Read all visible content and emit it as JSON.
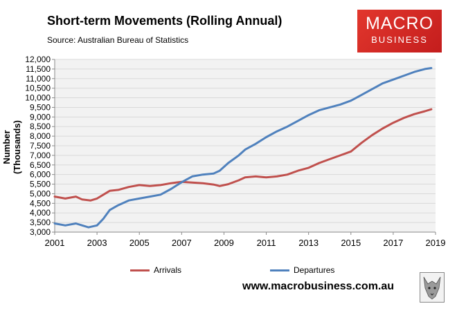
{
  "header": {
    "title": "Short-term Movements (Rolling Annual)",
    "subtitle": "Source: Australian Bureau of Statistics"
  },
  "logo": {
    "line1": "MACRO",
    "line2": "BUSINESS"
  },
  "footer": {
    "url": "www.macrobusiness.com.au"
  },
  "watermark": {
    "icon": "wolf-icon"
  },
  "colors": {
    "arrivals": "#c0504d",
    "departures": "#4f81bd",
    "plot_bg": "#f2f2f2",
    "grid": "#d9d9d9"
  },
  "chart_data": {
    "type": "line",
    "title": "Short-term Movements (Rolling Annual)",
    "xlabel": "",
    "ylabel": "Number (Thousands)",
    "xlim": [
      2001,
      2019
    ],
    "ylim": [
      3000,
      12000
    ],
    "x_ticks": [
      "2001",
      "2003",
      "2005",
      "2007",
      "2009",
      "2011",
      "2013",
      "2015",
      "2017",
      "2019"
    ],
    "y_ticks": [
      "3,000",
      "3,500",
      "4,000",
      "4,500",
      "5,000",
      "5,500",
      "6,000",
      "6,500",
      "7,000",
      "7,500",
      "8,000",
      "8,500",
      "9,000",
      "9,500",
      "10,000",
      "10,500",
      "11,000",
      "11,500",
      "12,000"
    ],
    "grid": "horizontal",
    "legend": "bottom",
    "series": [
      {
        "name": "Arrivals",
        "x": [
          2001.0,
          2001.5,
          2002.0,
          2002.3,
          2002.7,
          2003.0,
          2003.3,
          2003.6,
          2004.0,
          2004.5,
          2005.0,
          2005.5,
          2006.0,
          2006.5,
          2007.0,
          2007.5,
          2008.0,
          2008.5,
          2008.8,
          2009.2,
          2009.7,
          2010.0,
          2010.5,
          2011.0,
          2011.5,
          2012.0,
          2012.5,
          2013.0,
          2013.5,
          2014.0,
          2014.5,
          2015.0,
          2015.5,
          2016.0,
          2016.5,
          2017.0,
          2017.5,
          2018.0,
          2018.5,
          2018.8
        ],
        "values": [
          4850,
          4750,
          4850,
          4700,
          4650,
          4750,
          4950,
          5150,
          5200,
          5350,
          5450,
          5400,
          5450,
          5550,
          5620,
          5580,
          5550,
          5480,
          5400,
          5500,
          5700,
          5850,
          5900,
          5850,
          5900,
          6000,
          6200,
          6350,
          6600,
          6800,
          7000,
          7200,
          7650,
          8050,
          8400,
          8700,
          8950,
          9150,
          9300,
          9400
        ]
      },
      {
        "name": "Departures",
        "x": [
          2001.0,
          2001.5,
          2002.0,
          2002.3,
          2002.6,
          2003.0,
          2003.3,
          2003.6,
          2004.0,
          2004.5,
          2005.0,
          2005.5,
          2006.0,
          2006.5,
          2007.0,
          2007.5,
          2008.0,
          2008.5,
          2008.8,
          2009.2,
          2009.7,
          2010.0,
          2010.5,
          2011.0,
          2011.5,
          2012.0,
          2012.5,
          2013.0,
          2013.5,
          2014.0,
          2014.5,
          2015.0,
          2015.5,
          2016.0,
          2016.5,
          2017.0,
          2017.5,
          2018.0,
          2018.5,
          2018.8
        ],
        "values": [
          3450,
          3350,
          3450,
          3350,
          3250,
          3350,
          3700,
          4150,
          4400,
          4650,
          4750,
          4850,
          4950,
          5250,
          5600,
          5900,
          6000,
          6050,
          6200,
          6600,
          7000,
          7300,
          7600,
          7950,
          8250,
          8500,
          8800,
          9100,
          9350,
          9500,
          9650,
          9850,
          10150,
          10450,
          10750,
          10950,
          11150,
          11350,
          11500,
          11550
        ]
      }
    ]
  }
}
